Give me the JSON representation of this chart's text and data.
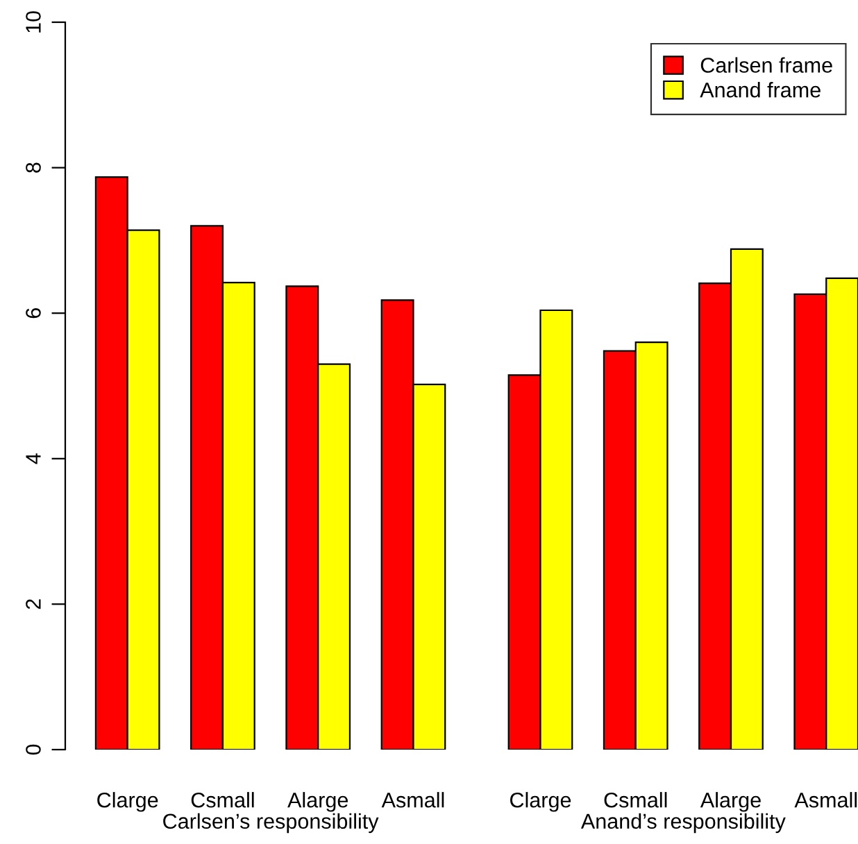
{
  "chart_data": {
    "type": "bar",
    "categories": [
      "Clarge",
      "Csmall",
      "Alarge",
      "Asmall",
      "Clarge",
      "Csmall",
      "Alarge",
      "Asmall"
    ],
    "series": [
      {
        "name": "Carlsen frame",
        "color": "#ff0000",
        "values": [
          7.87,
          7.2,
          6.37,
          6.18,
          5.15,
          5.48,
          6.41,
          6.26
        ]
      },
      {
        "name": "Anand frame",
        "color": "#ffff00",
        "values": [
          7.14,
          6.42,
          5.3,
          5.02,
          6.04,
          5.6,
          6.88,
          6.48
        ]
      }
    ],
    "annotations": [
      "Carlsen’s responsibility",
      "Anand’s responsibility"
    ],
    "ylim": [
      0,
      10
    ],
    "yticks": [
      0,
      2,
      4,
      6,
      8,
      10
    ],
    "grid": false,
    "legend": "top right"
  }
}
